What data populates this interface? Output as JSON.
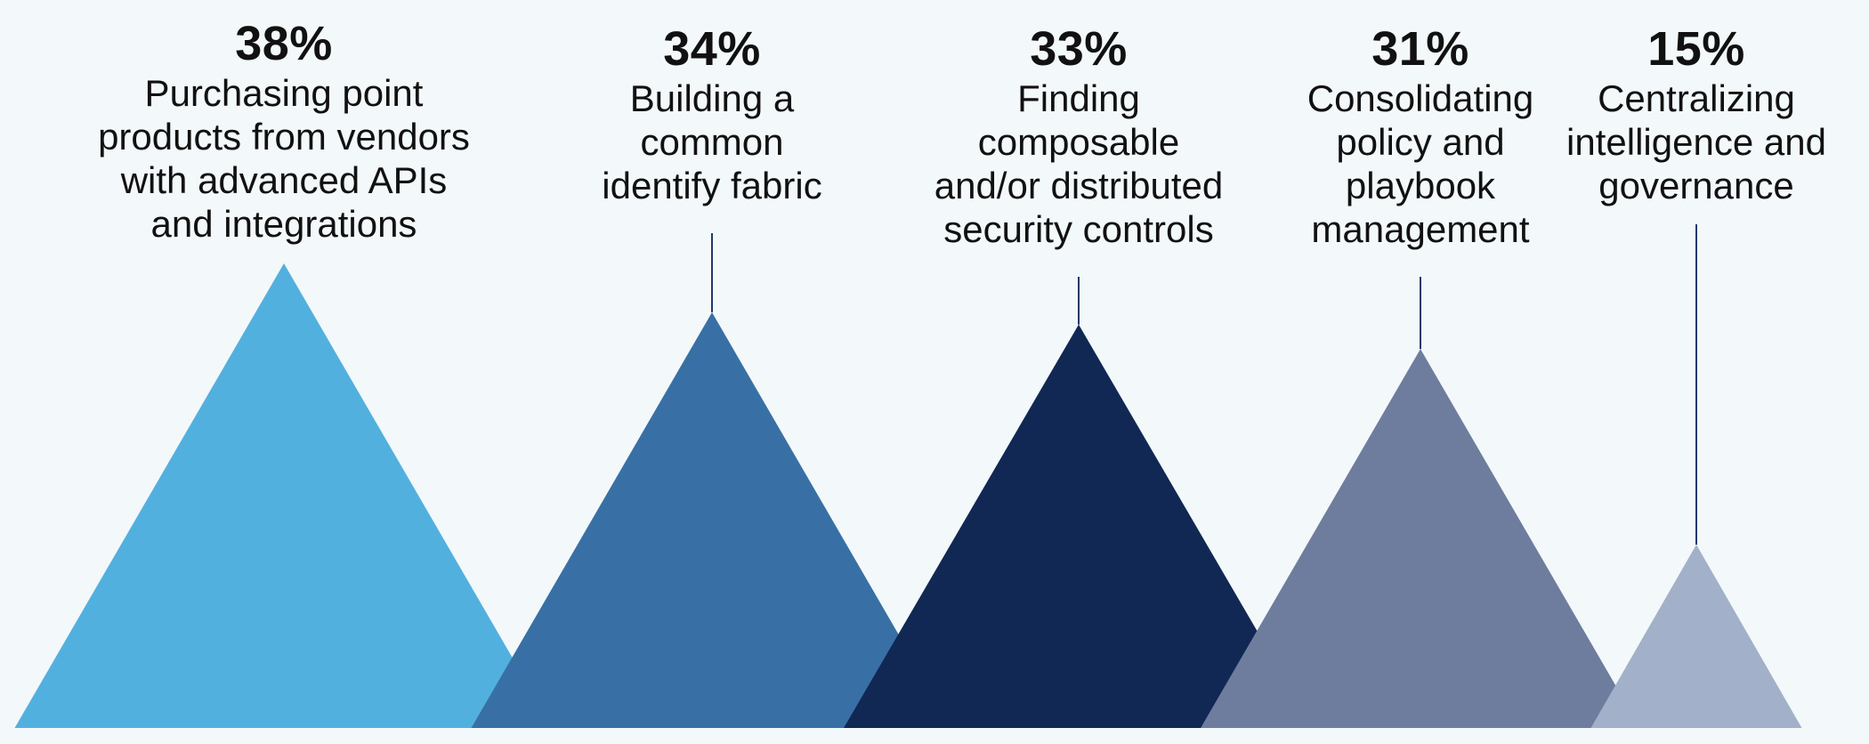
{
  "chart_data": {
    "type": "bar",
    "title": "",
    "xlabel": "",
    "ylabel": "",
    "categories": [
      "Purchasing point products from vendors with advanced APIs and integrations",
      "Building a common identify fabric",
      "Finding composable and/or distributed security controls",
      "Consolidating policy and playbook management",
      "Centralizing intelligence and governance"
    ],
    "values": [
      38,
      34,
      33,
      31,
      15
    ],
    "value_labels": [
      "38%",
      "34%",
      "33%",
      "31%",
      "15%"
    ],
    "colors": [
      "#52b0df",
      "#3870a5",
      "#102853",
      "#6e7d9e",
      "#a2b0c9"
    ],
    "unit": "%",
    "ylim": [
      0,
      38
    ],
    "grid": false,
    "legend": "none"
  },
  "label_lines": [
    [
      "Purchasing point",
      "products from vendors",
      "with advanced APIs",
      "and integrations"
    ],
    [
      "Building a",
      "common",
      "identify fabric"
    ],
    [
      "Finding",
      "composable",
      "and/or distributed",
      "security controls"
    ],
    [
      "Consolidating",
      "policy and",
      "playbook",
      "management"
    ],
    [
      "Centralizing",
      "intelligence and",
      "governance"
    ]
  ]
}
